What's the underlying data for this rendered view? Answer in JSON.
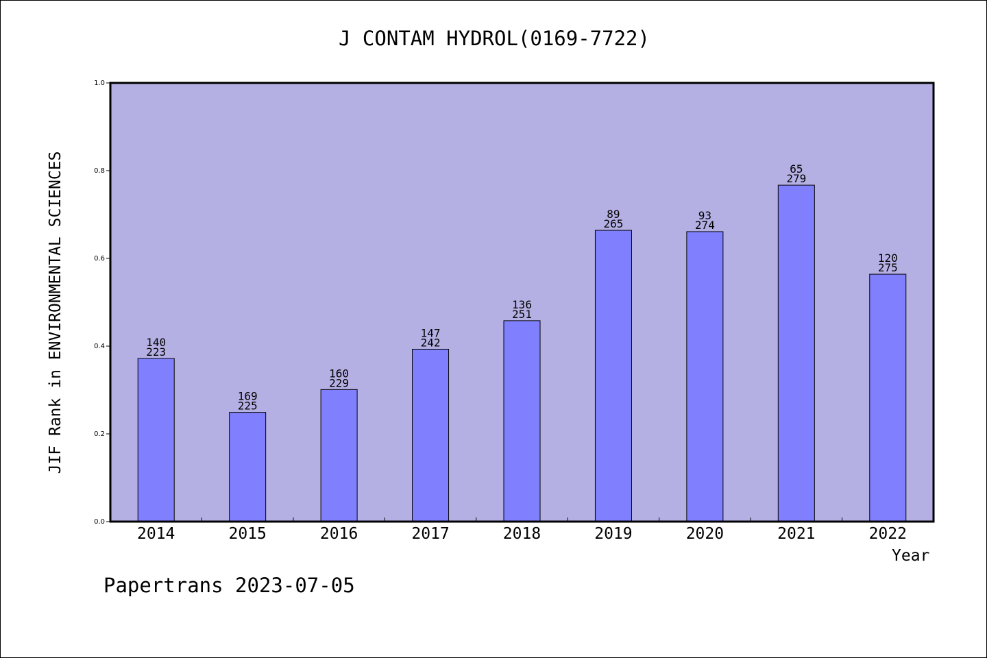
{
  "chart_data": {
    "type": "bar",
    "title": "J CONTAM HYDROL(0169-7722)",
    "xlabel": "Year",
    "ylabel": "JIF Rank in ENVIRONMENTAL SCIENCES",
    "ylim": [
      0,
      1
    ],
    "yticks": [
      "0.0",
      "0.2",
      "0.4",
      "0.6",
      "0.8",
      "1.0"
    ],
    "categories": [
      "2014",
      "2015",
      "2016",
      "2017",
      "2018",
      "2019",
      "2020",
      "2021",
      "2022"
    ],
    "values": [
      0.372,
      0.249,
      0.301,
      0.393,
      0.458,
      0.664,
      0.661,
      0.767,
      0.564
    ],
    "ranks": [
      "140",
      "169",
      "160",
      "147",
      "136",
      "89",
      "93",
      "65",
      "120"
    ],
    "totals": [
      "223",
      "225",
      "229",
      "242",
      "251",
      "265",
      "274",
      "279",
      "275"
    ],
    "colors": {
      "plot_bg": "#B5B0E3",
      "bar": "#8080FF"
    }
  },
  "footer": "Papertrans 2023-07-05"
}
